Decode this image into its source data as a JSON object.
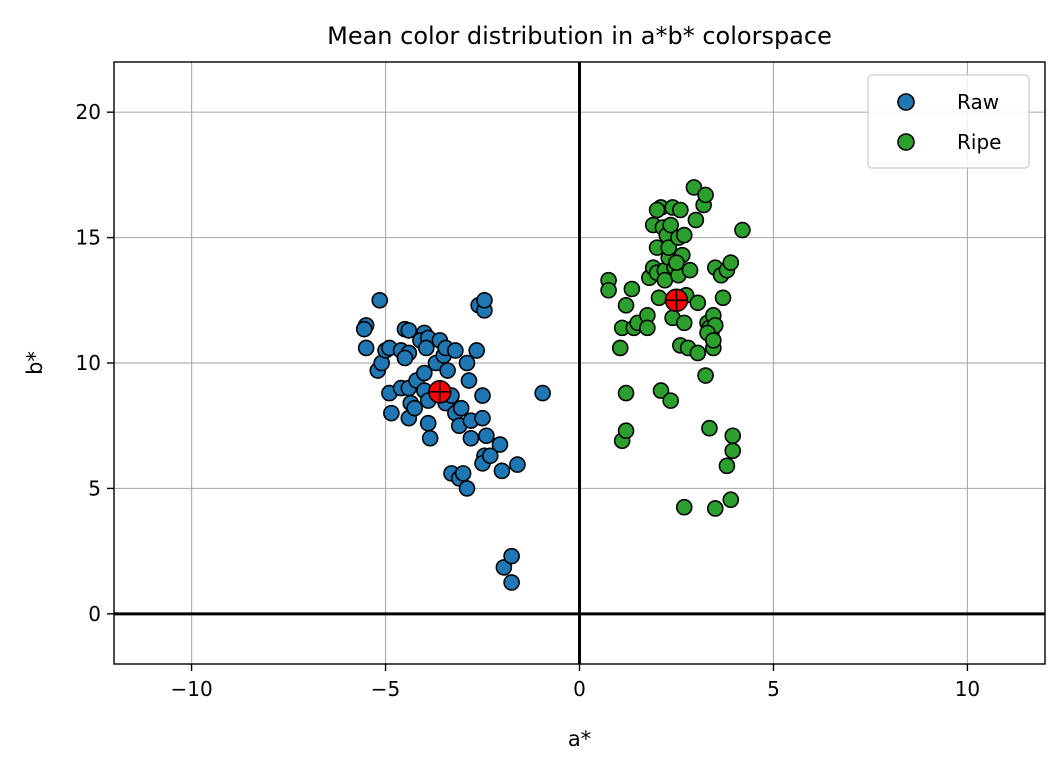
{
  "chart_data": {
    "type": "scatter",
    "title": "Mean color distribution in a*b* colorspace",
    "xlabel": "a*",
    "ylabel": "b*",
    "xlim": [
      -12,
      12
    ],
    "ylim": [
      -2,
      22
    ],
    "xticks": [
      -10,
      -5,
      0,
      5,
      10
    ],
    "yticks": [
      0,
      5,
      10,
      15,
      20
    ],
    "xtick_labels": [
      "−10",
      "−5",
      "0",
      "5",
      "10"
    ],
    "ytick_labels": [
      "0",
      "5",
      "10",
      "15",
      "20"
    ],
    "grid": true,
    "legend_position": "top-right",
    "reference_lines": {
      "x": 0,
      "y": 0
    },
    "series": [
      {
        "name": "Raw",
        "color": "#1f77b4",
        "points": [
          [
            -5.5,
            11.5
          ],
          [
            -5.55,
            11.35
          ],
          [
            -5.15,
            12.5
          ],
          [
            -5.5,
            10.6
          ],
          [
            -5.2,
            9.7
          ],
          [
            -5.1,
            10.0
          ],
          [
            -5.0,
            10.5
          ],
          [
            -4.9,
            10.6
          ],
          [
            -4.9,
            8.8
          ],
          [
            -4.85,
            8.0
          ],
          [
            -4.6,
            10.5
          ],
          [
            -4.5,
            11.35
          ],
          [
            -4.4,
            11.3
          ],
          [
            -4.4,
            10.4
          ],
          [
            -4.5,
            10.2
          ],
          [
            -4.6,
            9.0
          ],
          [
            -4.4,
            9.0
          ],
          [
            -4.35,
            8.4
          ],
          [
            -4.4,
            7.8
          ],
          [
            -4.2,
            9.3
          ],
          [
            -4.25,
            8.2
          ],
          [
            -4.0,
            11.2
          ],
          [
            -4.1,
            10.9
          ],
          [
            -3.9,
            11.0
          ],
          [
            -3.95,
            10.6
          ],
          [
            -4.0,
            9.6
          ],
          [
            -4.0,
            8.9
          ],
          [
            -3.9,
            8.5
          ],
          [
            -3.9,
            7.6
          ],
          [
            -3.85,
            7.0
          ],
          [
            -3.7,
            10.0
          ],
          [
            -3.6,
            10.9
          ],
          [
            -3.5,
            10.3
          ],
          [
            -3.45,
            10.6
          ],
          [
            -3.4,
            9.7
          ],
          [
            -3.45,
            8.4
          ],
          [
            -3.3,
            8.7
          ],
          [
            -3.2,
            8.0
          ],
          [
            -3.05,
            8.2
          ],
          [
            -3.1,
            7.5
          ],
          [
            -3.2,
            10.5
          ],
          [
            -2.9,
            10.0
          ],
          [
            -2.85,
            9.3
          ],
          [
            -2.8,
            7.7
          ],
          [
            -2.8,
            7.0
          ],
          [
            -2.65,
            10.5
          ],
          [
            -2.5,
            8.7
          ],
          [
            -2.5,
            7.8
          ],
          [
            -2.4,
            7.1
          ],
          [
            -2.45,
            6.3
          ],
          [
            -2.5,
            6.0
          ],
          [
            -2.3,
            6.3
          ],
          [
            -2.05,
            6.75
          ],
          [
            -2.0,
            5.7
          ],
          [
            -1.6,
            5.95
          ],
          [
            -2.6,
            12.3
          ],
          [
            -2.45,
            12.1
          ],
          [
            -2.45,
            12.5
          ],
          [
            -3.3,
            5.6
          ],
          [
            -3.1,
            5.4
          ],
          [
            -3.0,
            5.6
          ],
          [
            -2.9,
            5.0
          ],
          [
            -1.95,
            1.85
          ],
          [
            -1.75,
            2.3
          ],
          [
            -1.75,
            1.25
          ],
          [
            -0.95,
            8.8
          ]
        ]
      },
      {
        "name": "Ripe",
        "color": "#2ca02c",
        "points": [
          [
            0.75,
            13.3
          ],
          [
            0.75,
            12.9
          ],
          [
            1.05,
            10.6
          ],
          [
            1.1,
            11.4
          ],
          [
            1.1,
            6.9
          ],
          [
            1.2,
            7.3
          ],
          [
            1.2,
            8.8
          ],
          [
            1.2,
            12.3
          ],
          [
            1.35,
            12.95
          ],
          [
            1.4,
            11.4
          ],
          [
            1.5,
            11.6
          ],
          [
            1.75,
            11.9
          ],
          [
            1.75,
            11.4
          ],
          [
            1.8,
            13.4
          ],
          [
            1.9,
            13.8
          ],
          [
            1.9,
            15.5
          ],
          [
            2.0,
            13.6
          ],
          [
            2.0,
            14.6
          ],
          [
            2.05,
            12.6
          ],
          [
            2.1,
            16.2
          ],
          [
            2.15,
            15.4
          ],
          [
            2.2,
            13.7
          ],
          [
            2.2,
            13.3
          ],
          [
            2.25,
            15.1
          ],
          [
            2.3,
            14.2
          ],
          [
            2.3,
            14.6
          ],
          [
            2.35,
            15.5
          ],
          [
            2.4,
            16.2
          ],
          [
            2.4,
            11.8
          ],
          [
            2.45,
            13.8
          ],
          [
            2.5,
            12.6
          ],
          [
            2.55,
            15.0
          ],
          [
            2.55,
            13.5
          ],
          [
            2.6,
            16.1
          ],
          [
            2.6,
            10.7
          ],
          [
            2.65,
            14.3
          ],
          [
            2.7,
            15.1
          ],
          [
            2.7,
            11.6
          ],
          [
            2.75,
            12.7
          ],
          [
            2.8,
            10.6
          ],
          [
            2.85,
            13.7
          ],
          [
            2.95,
            17.0
          ],
          [
            3.0,
            15.7
          ],
          [
            3.05,
            12.4
          ],
          [
            3.05,
            10.4
          ],
          [
            3.2,
            16.3
          ],
          [
            3.25,
            16.7
          ],
          [
            3.25,
            9.5
          ],
          [
            3.3,
            11.6
          ],
          [
            3.35,
            11.4
          ],
          [
            3.4,
            11.2
          ],
          [
            3.45,
            10.6
          ],
          [
            3.45,
            11.9
          ],
          [
            3.5,
            11.5
          ],
          [
            3.5,
            13.8
          ],
          [
            3.65,
            13.5
          ],
          [
            3.7,
            12.6
          ],
          [
            3.8,
            13.7
          ],
          [
            3.9,
            14.0
          ],
          [
            4.2,
            15.3
          ],
          [
            2.1,
            8.9
          ],
          [
            2.35,
            8.5
          ],
          [
            3.35,
            7.4
          ],
          [
            3.95,
            7.1
          ],
          [
            3.95,
            6.5
          ],
          [
            3.8,
            5.9
          ],
          [
            3.9,
            4.55
          ],
          [
            3.5,
            4.2
          ],
          [
            2.7,
            4.25
          ],
          [
            2.0,
            16.1
          ],
          [
            2.5,
            14.0
          ],
          [
            3.3,
            11.2
          ],
          [
            3.45,
            10.9
          ]
        ]
      },
      {
        "name": "",
        "color": "#ff0000",
        "marker": "crosshair",
        "points": [
          [
            -3.6,
            8.85
          ],
          [
            2.5,
            12.5
          ]
        ]
      }
    ]
  }
}
